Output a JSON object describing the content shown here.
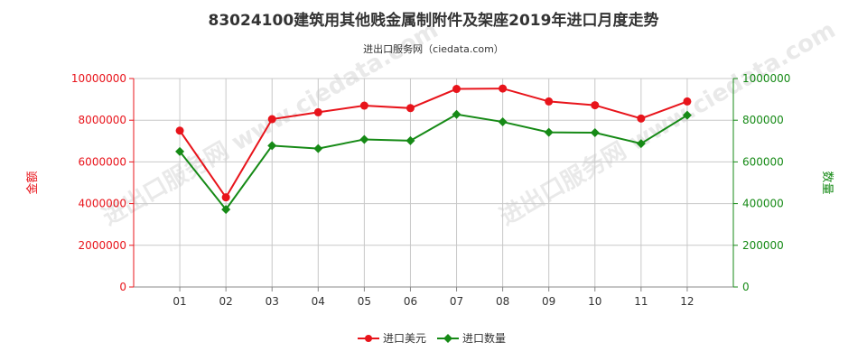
{
  "header": {
    "title": "83024100建筑用其他贱金属制附件及架座2019年进口月度走势",
    "subtitle": "进出口服务网（ciedata.com）"
  },
  "watermark": "进出口服务网 www.ciedata.com",
  "colors": {
    "value_series": "#e8141b",
    "quantity_series": "#168a16",
    "left_axis": "#e8141b",
    "right_axis": "#168a16",
    "grid": "#c8c8c8"
  },
  "chart_data": {
    "type": "line",
    "categories": [
      "01",
      "02",
      "03",
      "04",
      "05",
      "06",
      "07",
      "08",
      "09",
      "10",
      "11",
      "12"
    ],
    "series": [
      {
        "name": "进口美元",
        "axis": "left",
        "values": [
          7500000,
          4300000,
          8050000,
          8380000,
          8700000,
          8580000,
          9500000,
          9520000,
          8900000,
          8720000,
          8080000,
          8900000
        ]
      },
      {
        "name": "进口数量",
        "axis": "right",
        "values": [
          650000,
          372000,
          678000,
          664000,
          708000,
          702000,
          828000,
          792000,
          742000,
          740000,
          688000,
          824000
        ]
      }
    ],
    "y_left": {
      "label": "金额",
      "ylim": [
        0,
        10000000
      ],
      "ticks": [
        "0",
        "2000000",
        "4000000",
        "6000000",
        "8000000",
        "10000000"
      ]
    },
    "y_right": {
      "label": "数量",
      "ylim": [
        0,
        1000000
      ],
      "ticks": [
        "0",
        "200000",
        "400000",
        "600000",
        "800000",
        "1000000"
      ]
    },
    "grid": true,
    "legend_position": "bottom"
  }
}
